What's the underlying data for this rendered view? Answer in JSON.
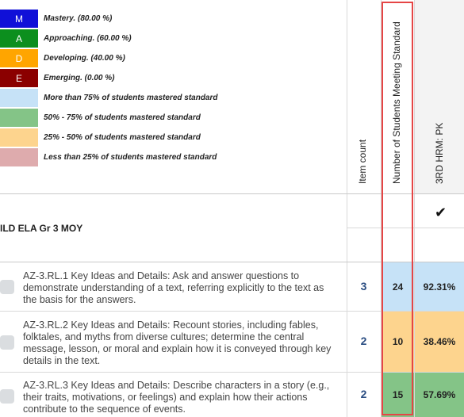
{
  "legend": [
    {
      "code": "M",
      "text": "Mastery.  (80.00 %)",
      "color": "#1010d8",
      "text_color": "#ffffff"
    },
    {
      "code": "A",
      "text": "Approaching.  (60.00 %)",
      "color": "#0c8f1e",
      "text_color": "#ffffff"
    },
    {
      "code": "D",
      "text": "Developing.  (40.00 %)",
      "color": "#ffa500",
      "text_color": "#ffffff"
    },
    {
      "code": "E",
      "text": "Emerging.  (0.00 %)",
      "color": "#8b0000",
      "text_color": "#ffffff"
    },
    {
      "code": "",
      "text": "More than 75% of students mastered standard",
      "color": "#c6e2f7",
      "text_color": "#222222"
    },
    {
      "code": "",
      "text": "50% - 75% of students mastered standard",
      "color": "#84c487",
      "text_color": "#222222"
    },
    {
      "code": "",
      "text": "25% - 50% of students mastered standard",
      "color": "#fdd48e",
      "text_color": "#222222"
    },
    {
      "code": "",
      "text": "Less than 25% of students mastered standard",
      "color": "#deabad",
      "text_color": "#222222"
    }
  ],
  "headers": {
    "item_count": "Item count",
    "students_meeting": "Number of Students Meeting Standard",
    "class_col": "3RD HRM: PK"
  },
  "assessment": {
    "title": "ILD ELA Gr 3 MOY",
    "check": "✔"
  },
  "rows": [
    {
      "text": "AZ-3.RL.1 Key Ideas and Details: Ask and answer questions to demonstrate understanding of a text, referring explicitly to the text as the basis for the answers.",
      "item_count": "3",
      "students_meeting": "24",
      "percent": "92.31%",
      "color": "#c6e2f7"
    },
    {
      "text": "AZ-3.RL.2 Key Ideas and Details: Recount stories, including fables, folktales, and myths from diverse cultures; determine the central message, lesson, or moral and explain how it is conveyed through key details in the text.",
      "item_count": "2",
      "students_meeting": "10",
      "percent": "38.46%",
      "color": "#fdd48e"
    },
    {
      "text": "AZ-3.RL.3 Key Ideas and Details: Describe characters in a story (e.g., their traits, motivations, or feelings) and explain how their actions contribute to the sequence of events.",
      "item_count": "2",
      "students_meeting": "15",
      "percent": "57.69%",
      "color": "#84c487"
    }
  ]
}
